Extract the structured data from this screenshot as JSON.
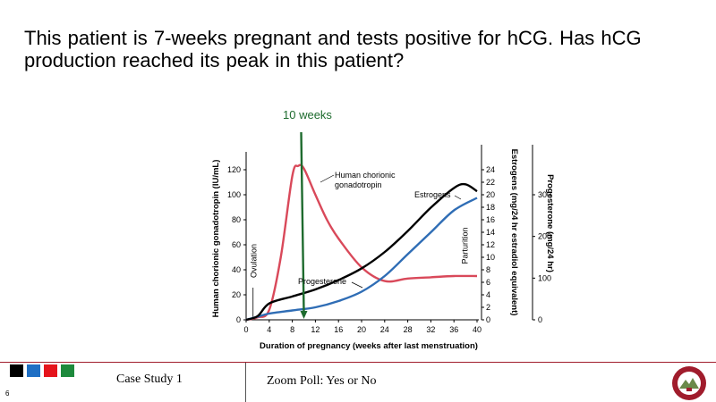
{
  "slide": {
    "question_line1": "This patient is 7-weeks pregnant  and tests positive  for hCG.  Has hCG",
    "question_line2": "production  reached its peak in this patient?",
    "marker_label": "10 weeks",
    "slide_number": "6"
  },
  "footer": {
    "left_text": "Case Study 1",
    "right_text": "Zoom Poll: Yes or No",
    "swatch_colors": [
      "#000000",
      "#1f6fc4",
      "#e5141c",
      "#1e8a3c"
    ],
    "accent_color": "#a01c2c"
  },
  "chart_data": {
    "type": "line",
    "x": [
      0,
      4,
      8,
      12,
      16,
      20,
      24,
      28,
      32,
      36,
      40
    ],
    "xlim": [
      0,
      40
    ],
    "xlabel": "Duration of pregnancy (weeks after last menstruation)",
    "ylabel_left": "Human chorionic gonadotropin (IU/mL)",
    "ylim_left": [
      0,
      120
    ],
    "yticks_left": [
      0,
      20,
      40,
      60,
      80,
      100,
      120
    ],
    "ylabel_mid": "Estrogens (mg/24 hr estradiol equivalent)",
    "yticks_mid": [
      0,
      2,
      4,
      6,
      8,
      10,
      12,
      14,
      16,
      18,
      20,
      22,
      24
    ],
    "ylabel_right": "Progesterone (mg/24 hr)",
    "yticks_right": [
      0,
      100,
      200,
      300
    ],
    "annotations": [
      "Ovulation",
      "Parturition"
    ],
    "marker_x": 10,
    "series": [
      {
        "name": "Human chorionic gonadotropin",
        "color": "#d9495a",
        "points": [
          [
            0,
            0
          ],
          [
            2,
            2
          ],
          [
            4,
            8
          ],
          [
            6,
            50
          ],
          [
            8,
            115
          ],
          [
            9,
            123
          ],
          [
            10,
            121
          ],
          [
            12,
            100
          ],
          [
            14,
            80
          ],
          [
            16,
            65
          ],
          [
            20,
            42
          ],
          [
            24,
            31
          ],
          [
            28,
            33
          ],
          [
            32,
            34
          ],
          [
            36,
            35
          ],
          [
            40,
            35
          ]
        ]
      },
      {
        "name": "Estrogens",
        "color": "#2f6db5",
        "points": [
          [
            0,
            0
          ],
          [
            2,
            0.5
          ],
          [
            4,
            1
          ],
          [
            8,
            1.5
          ],
          [
            12,
            2
          ],
          [
            16,
            3
          ],
          [
            20,
            4.5
          ],
          [
            24,
            7
          ],
          [
            28,
            10.5
          ],
          [
            32,
            14
          ],
          [
            36,
            17.5
          ],
          [
            40,
            19.5
          ]
        ]
      },
      {
        "name": "Progesterone",
        "color": "#000000",
        "points": [
          [
            0,
            0
          ],
          [
            2,
            8
          ],
          [
            4,
            35
          ],
          [
            8,
            50
          ],
          [
            12,
            65
          ],
          [
            16,
            85
          ],
          [
            20,
            110
          ],
          [
            24,
            145
          ],
          [
            28,
            190
          ],
          [
            32,
            240
          ],
          [
            36,
            282
          ],
          [
            38,
            290
          ],
          [
            40,
            275
          ]
        ]
      }
    ],
    "marker_color": "#1e6b2e"
  }
}
